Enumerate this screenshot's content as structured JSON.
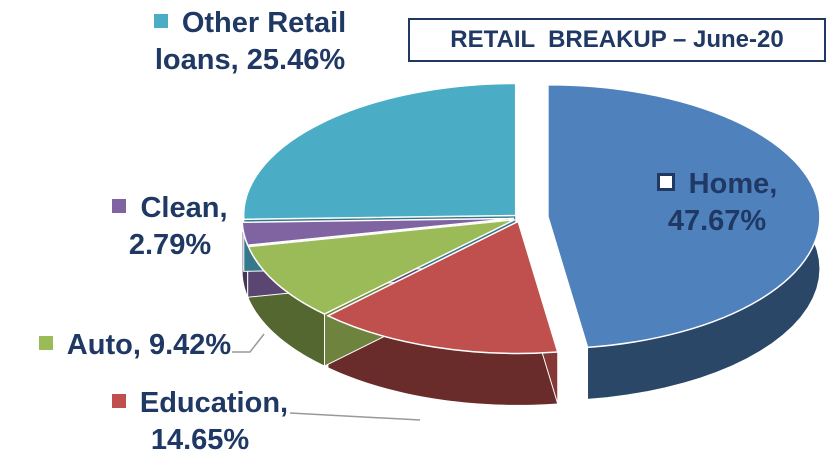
{
  "chart_data": {
    "type": "pie",
    "title": "RETAIL  BREAKUP – June-20",
    "categories": [
      "Home,",
      "Education,",
      "Auto,",
      "Clean,",
      "Other Retail loans,"
    ],
    "values": [
      47.67,
      14.65,
      9.42,
      2.79,
      25.46
    ],
    "value_labels": [
      "47.67%",
      "14.65%",
      "9.42%",
      "2.79%",
      "25.46%"
    ],
    "colors": [
      "#4f81bd",
      "#c0504d",
      "#9bbb59",
      "#8064a2",
      "#4bacc6"
    ]
  }
}
